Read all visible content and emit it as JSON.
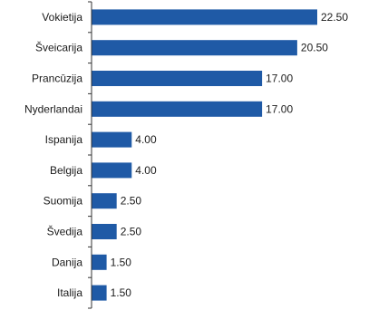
{
  "chart_data": {
    "type": "bar",
    "orientation": "horizontal",
    "categories": [
      "Vokietija",
      "Šveicarija",
      "Prancūzija",
      "Nyderlandai",
      "Ispanija",
      "Belgija",
      "Suomija",
      "Švedija",
      "Danija",
      "Italija"
    ],
    "values": [
      22.5,
      20.5,
      17.0,
      17.0,
      4.0,
      4.0,
      2.5,
      2.5,
      1.5,
      1.5
    ],
    "value_labels": [
      "22.50",
      "20.50",
      "17.00",
      "17.00",
      "4.00",
      "4.00",
      "2.50",
      "2.50",
      "1.50",
      "1.50"
    ],
    "title": "",
    "xlabel": "",
    "ylabel": "",
    "xlim": [
      0,
      22.5
    ],
    "grid": false,
    "legend": "none",
    "bar_color": "#1f5aa6",
    "axis_color": "#333333"
  }
}
